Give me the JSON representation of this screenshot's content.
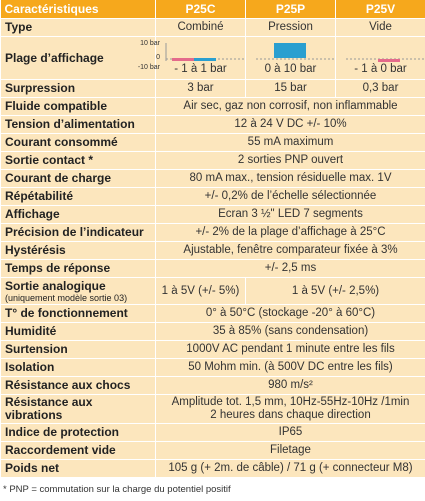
{
  "header": [
    "Caractéristiques",
    "P25C",
    "P25P",
    "P25V"
  ],
  "scale": {
    "top": "10 bar",
    "zero": "0",
    "bottom": "-10 bar"
  },
  "rows": [
    {
      "label": "Type",
      "values": [
        "Combiné",
        "Pression",
        "Vide"
      ]
    },
    {
      "label": "Plage d’affichage",
      "values": [
        "- 1 à 1 bar",
        "0 à 10 bar",
        "- 1 à 0 bar"
      ]
    },
    {
      "label": "Surpression",
      "values": [
        "3 bar",
        "15 bar",
        "0,3 bar"
      ]
    },
    {
      "label": "Fluide compatible",
      "values": [
        "Air sec, gaz non corrosif, non inflammable"
      ]
    },
    {
      "label": "Tension d’alimentation",
      "values": [
        "12 à 24 V DC +/- 10%"
      ]
    },
    {
      "label": "Courant consommé",
      "values": [
        "55 mA maximum"
      ]
    },
    {
      "label": "Sortie contact *",
      "values": [
        "2 sorties PNP ouvert"
      ]
    },
    {
      "label": "Courant de charge",
      "values": [
        "80 mA max., tension résiduelle max. 1V"
      ]
    },
    {
      "label": "Répétabilité",
      "values": [
        "+/- 0,2% de l’échelle sélectionnée"
      ]
    },
    {
      "label": "Affichage",
      "values": [
        "Ecran 3 ½\" LED 7 segments"
      ]
    },
    {
      "label": "Précision de l’indicateur",
      "values": [
        "+/- 2% de la plage d’affichage à 25°C"
      ]
    },
    {
      "label": "Hystérésis",
      "values": [
        "Ajustable, fenêtre comparateur fixée à 3%"
      ]
    },
    {
      "label": "Temps de réponse",
      "values": [
        "+/- 2,5 ms"
      ]
    },
    {
      "label": "Sortie analogique",
      "sublabel": "(uniquement modèle sortie 03)",
      "values": [
        "1 à 5V (+/- 5%)",
        "1 à 5V (+/- 2,5%)"
      ]
    },
    {
      "label": "T° de fonctionnement",
      "values": [
        "0° à 50°C (stockage -20° à 60°C)"
      ]
    },
    {
      "label": "Humidité",
      "values": [
        "35 à 85% (sans condensation)"
      ]
    },
    {
      "label": "Surtension",
      "values": [
        "1000V AC pendant 1 minute entre les fils"
      ]
    },
    {
      "label": "Isolation",
      "values": [
        "50 Mohm min. (à 500V DC entre les fils)"
      ]
    },
    {
      "label": "Résistance aux chocs",
      "values": [
        "980 m/s²"
      ]
    },
    {
      "label": "Résistance aux vibrations",
      "values": [
        [
          "Amplitude tot. 1,5 mm, 10Hz-55Hz-10Hz /1min",
          "2 heures dans chaque direction"
        ]
      ]
    },
    {
      "label": "Indice de protection",
      "values": [
        "IP65"
      ]
    },
    {
      "label": "Raccordement vide",
      "values": [
        "Filetage"
      ]
    },
    {
      "label": "Poids net",
      "values": [
        "105 g (+ 2m. de câble) / 71 g (+ connecteur M8)"
      ]
    }
  ],
  "footnote": "* PNP = commutation sur la charge du potentiel positif"
}
